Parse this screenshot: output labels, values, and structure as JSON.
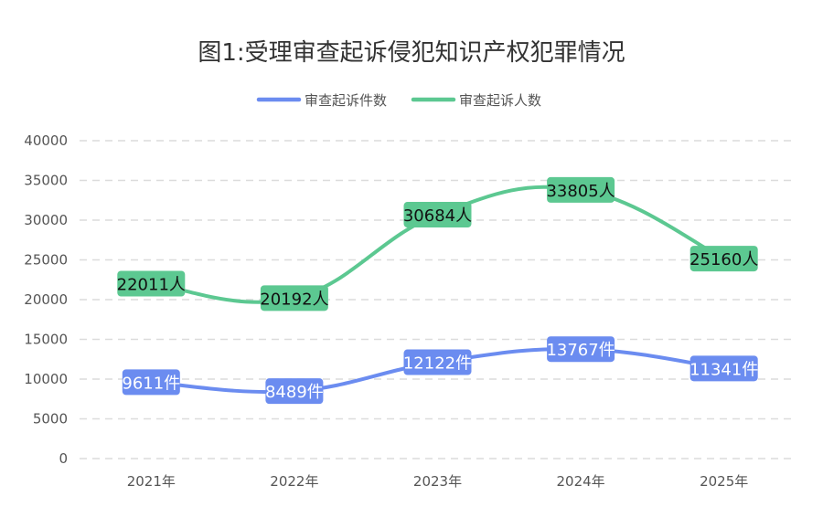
{
  "chart_data": {
    "type": "line",
    "title": "图1:受理审查起诉侵犯知识产权犯罪情况",
    "categories": [
      "2021年",
      "2022年",
      "2023年",
      "2024年",
      "2025年"
    ],
    "ylim": [
      0,
      40000
    ],
    "yticks": [
      "0",
      "5000",
      "10000",
      "15000",
      "20000",
      "25000",
      "30000",
      "35000",
      "40000"
    ],
    "grid": true,
    "legend_position": "top",
    "smooth": true,
    "series": [
      {
        "name": "审查起诉件数",
        "values": [
          9611,
          8489,
          12122,
          13767,
          11341
        ],
        "unit": "件",
        "color": "#6b8cf0"
      },
      {
        "name": "审查起诉人数",
        "values": [
          22011,
          20192,
          30684,
          33805,
          25160
        ],
        "unit": "人",
        "color": "#5cc891"
      }
    ]
  }
}
